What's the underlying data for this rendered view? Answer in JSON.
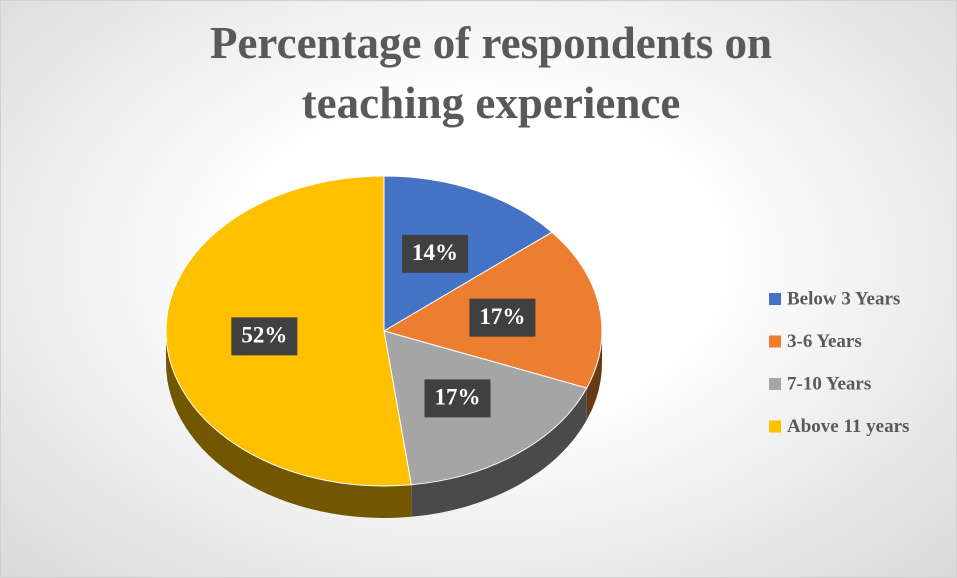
{
  "chart_data": {
    "type": "pie",
    "title": "Percentage of respondents on teaching experience",
    "categories": [
      "Below 3 Years",
      "3-6 Years",
      "7-10 Years",
      "Above 11 years"
    ],
    "values": [
      14,
      17,
      17,
      52
    ],
    "value_labels": [
      "14%",
      "17%",
      "17%",
      "52%"
    ],
    "colors": [
      "#4472c4",
      "#ed7d31",
      "#a5a5a5",
      "#ffc000"
    ],
    "legend": "right"
  }
}
